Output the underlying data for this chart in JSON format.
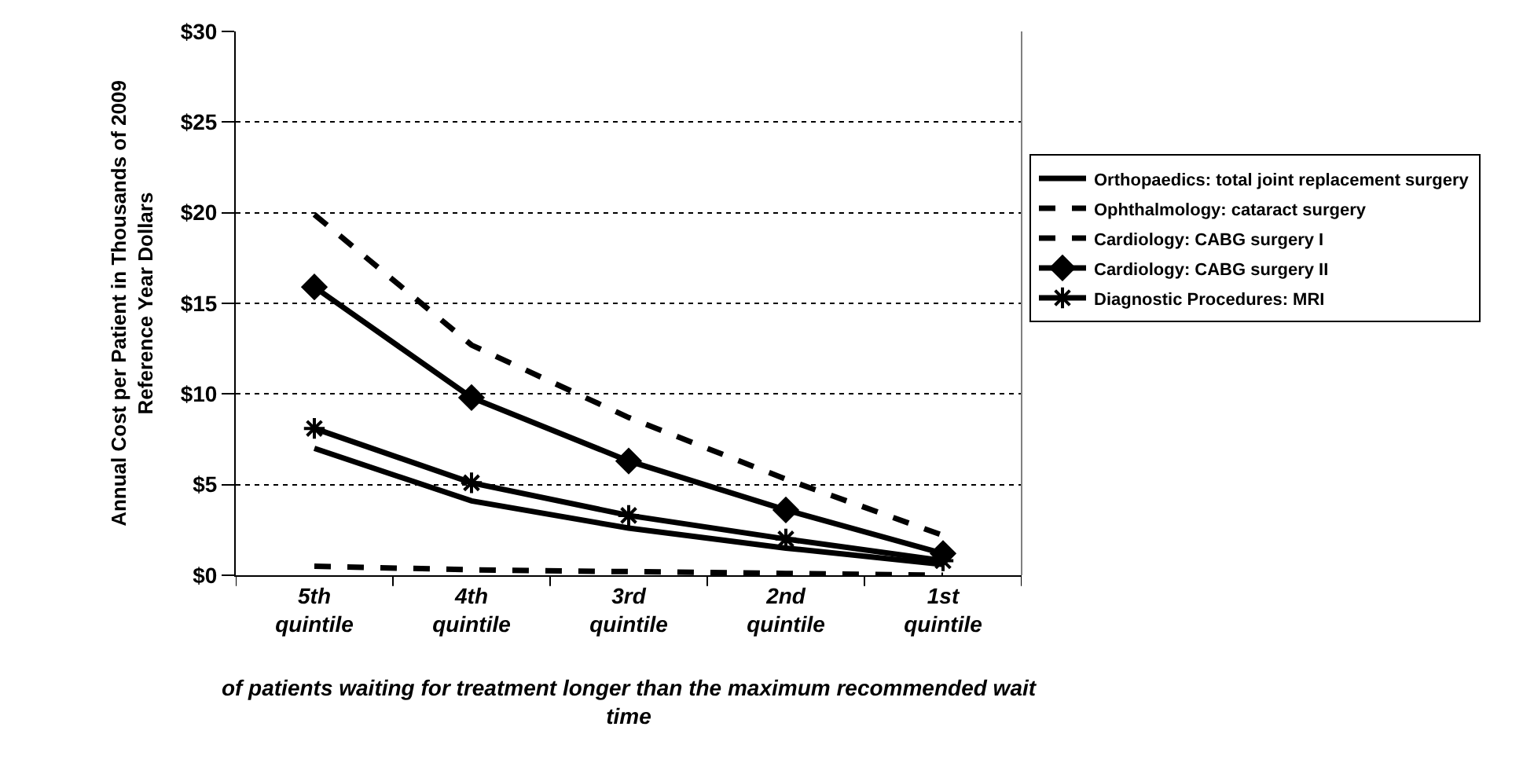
{
  "chart_data": {
    "type": "line",
    "xlabel": "of patients waiting for treatment longer than the maximum recommended wait\ntime",
    "ylabel": "Annual Cost per Patient in Thousands of 2009\nReference Year Dollars",
    "categories": [
      "5th\nquintile",
      "4th\nquintile",
      "3rd\nquintile",
      "2nd\nquintile",
      "1st\nquintile"
    ],
    "series": [
      {
        "name": "Orthopaedics: total joint replacement surgery",
        "color": "#000000",
        "values": [
          7.0,
          4.1,
          2.6,
          1.5,
          0.6
        ],
        "marker": "none",
        "line_style": "solid"
      },
      {
        "name": "Ophthalmology: cataract surgery",
        "color": "#000000",
        "values": [
          0.5,
          0.3,
          0.2,
          0.1,
          0.0
        ],
        "marker": "none",
        "line_style": "dashed"
      },
      {
        "name": "Cardiology: CABG surgery I",
        "color": "#000000",
        "values": [
          19.9,
          12.7,
          8.7,
          5.3,
          2.2
        ],
        "marker": "none",
        "line_style": "dashed"
      },
      {
        "name": "Cardiology: CABG surgery II",
        "color": "#000000",
        "values": [
          15.9,
          9.8,
          6.3,
          3.6,
          1.2
        ],
        "marker": "diamond",
        "line_style": "solid"
      },
      {
        "name": "Diagnostic Procedures: MRI",
        "color": "#000000",
        "values": [
          8.1,
          5.1,
          3.3,
          2.0,
          0.8
        ],
        "marker": "cross",
        "line_style": "solid"
      }
    ],
    "ylim": [
      0,
      30
    ],
    "yticks": [
      {
        "value": 0,
        "label": "$0"
      },
      {
        "value": 5,
        "label": "$5"
      },
      {
        "value": 10,
        "label": "$10"
      },
      {
        "value": 15,
        "label": "$15"
      },
      {
        "value": 20,
        "label": "$20"
      },
      {
        "value": 25,
        "label": "$25"
      },
      {
        "value": 30,
        "label": "$30"
      }
    ],
    "grid": "y",
    "legend": "right"
  }
}
